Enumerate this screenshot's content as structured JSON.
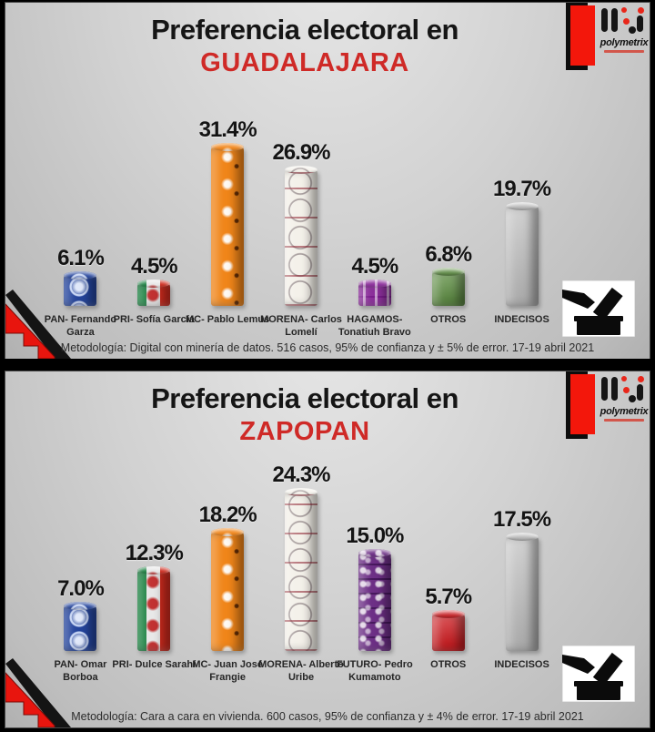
{
  "brand": {
    "name": "polymetrix"
  },
  "panels": [
    {
      "title_line1": "Preferencia electoral en",
      "title_city": "GUADALAJARA",
      "methodology": "Metodología: Digital con minería de datos. 516 casos, 95% de confianza y ± 5% de error. 17-19 abril 2021"
    },
    {
      "title_line1": "Preferencia electoral en",
      "title_city": "ZAPOPAN",
      "methodology": "Metodología: Cara a cara en vivienda. 600 casos, 95% de confianza y ± 4% de error. 17-19 abril 2021"
    }
  ],
  "colors": {
    "title_red": "#cf2a27",
    "title_black": "#151515",
    "pan_blue": "#24449c",
    "pri_green": "#1a8040",
    "pri_red": "#cf2b1e",
    "mc_orange": "#f08519",
    "morena_white": "#f4f1ea",
    "hagamos_purple": "#8c2f9b",
    "futuro_purple": "#6d2f86",
    "otros_green": "#5c8f3f",
    "otros_red": "#d01217",
    "indecisos_gray": "#bcbcbc",
    "logo_red": "#f3170b"
  },
  "chart_data": [
    {
      "type": "bar",
      "title": "Preferencia electoral en GUADALAJARA",
      "unit": "%",
      "axes": "none",
      "grid": false,
      "legend": "none",
      "value_labels_shown": true,
      "categories": [
        "PAN- Fernando Garza",
        "PRI- Sofía García",
        "MC- Pablo Lemus",
        "MORENA- Carlos Lomelí",
        "HAGAMOS- Tonatiuh Bravo",
        "OTROS",
        "INDECISOS"
      ],
      "values": [
        6.1,
        4.5,
        31.4,
        26.9,
        4.5,
        6.8,
        19.7
      ],
      "value_labels": [
        "6.1%",
        "4.5%",
        "31.4%",
        "26.9%",
        "4.5%",
        "6.8%",
        "19.7%"
      ],
      "party_keys": [
        "pan",
        "pri",
        "mc",
        "morena",
        "hagamos",
        "otros-green",
        "indecisos"
      ],
      "bar_colors": [
        "#24449c",
        "#1a8040",
        "#f08519",
        "#f4f1ea",
        "#8c2f9b",
        "#5c8f3f",
        "#bcbcbc"
      ]
    },
    {
      "type": "bar",
      "title": "Preferencia electoral en ZAPOPAN",
      "unit": "%",
      "axes": "none",
      "grid": false,
      "legend": "none",
      "value_labels_shown": true,
      "categories": [
        "PAN- Omar Borboa",
        "PRI- Dulce Sarahí",
        "MC- Juan José Frangie",
        "MORENA- Alberto Uribe",
        "FUTURO- Pedro Kumamoto",
        "OTROS",
        "INDECISOS"
      ],
      "values": [
        7.0,
        12.3,
        18.2,
        24.3,
        15.0,
        5.7,
        17.5
      ],
      "value_labels": [
        "7.0%",
        "12.3%",
        "18.2%",
        "24.3%",
        "15.0%",
        "5.7%",
        "17.5%"
      ],
      "party_keys": [
        "pan",
        "pri",
        "mc",
        "morena",
        "futuro",
        "otros-red",
        "indecisos"
      ],
      "bar_colors": [
        "#24449c",
        "#1a8040",
        "#f08519",
        "#f4f1ea",
        "#6d2f86",
        "#d01217",
        "#bcbcbc"
      ]
    }
  ]
}
